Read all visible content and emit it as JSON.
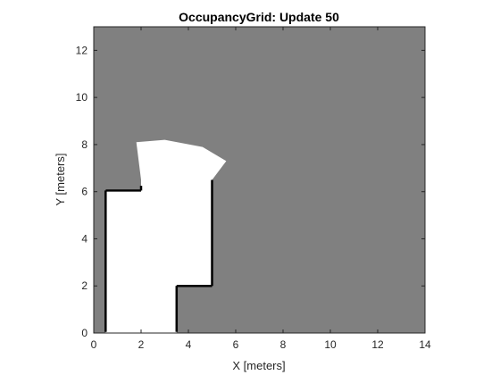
{
  "chart_data": {
    "type": "heatmap",
    "title": "OccupancyGrid: Update 50",
    "xlabel": "X [meters]",
    "ylabel": "Y [meters]",
    "xlim": [
      0,
      14
    ],
    "ylim": [
      0,
      13
    ],
    "x_ticks": [
      0,
      2,
      4,
      6,
      8,
      10,
      12,
      14
    ],
    "y_ticks": [
      0,
      2,
      4,
      6,
      8,
      10,
      12
    ],
    "x_tick_labels": [
      "0",
      "2",
      "4",
      "6",
      "8",
      "10",
      "12",
      "14"
    ],
    "y_tick_labels": [
      "0",
      "2",
      "4",
      "6",
      "8",
      "10",
      "12"
    ],
    "grid": false,
    "colors": {
      "unknown": "#808080",
      "free": "#ffffff",
      "occupied": "#000000",
      "axis": "#262626"
    },
    "free_region": [
      [
        0.5,
        0
      ],
      [
        3.5,
        0
      ],
      [
        3.5,
        2
      ],
      [
        5.0,
        2
      ],
      [
        5.0,
        6.5
      ],
      [
        5.6,
        7.3
      ],
      [
        4.6,
        7.9
      ],
      [
        3.0,
        8.2
      ],
      [
        1.8,
        8.1
      ],
      [
        2.0,
        6.5
      ],
      [
        2.0,
        6.1
      ],
      [
        0.5,
        6.1
      ]
    ],
    "occupied_segments": [
      [
        [
          0.5,
          6.05
        ],
        [
          2.0,
          6.05
        ]
      ],
      [
        [
          0.5,
          6.05
        ],
        [
          0.5,
          0.05
        ]
      ],
      [
        [
          3.5,
          0.05
        ],
        [
          3.5,
          2.0
        ]
      ],
      [
        [
          3.5,
          2.0
        ],
        [
          5.0,
          2.0
        ]
      ],
      [
        [
          5.0,
          2.0
        ],
        [
          5.0,
          6.5
        ]
      ],
      [
        [
          2.0,
          6.05
        ],
        [
          2.0,
          6.25
        ]
      ]
    ]
  }
}
